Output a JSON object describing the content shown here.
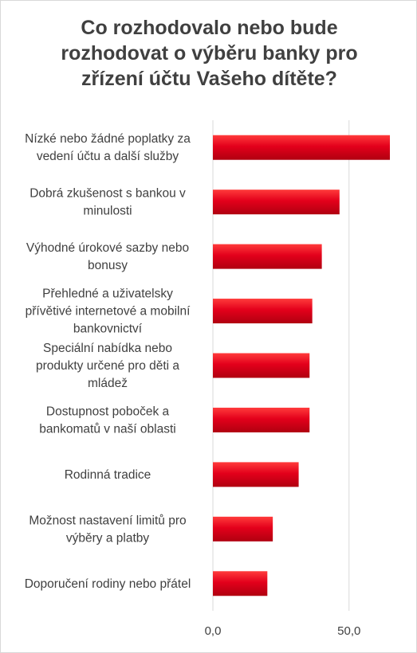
{
  "chart_data": {
    "type": "bar",
    "orientation": "horizontal",
    "title_lines": [
      "Co rozhodovalo nebo bude",
      "rozhodovat o výběru banky pro",
      "zřízení účtu Vašeho dítěte?"
    ],
    "categories": [
      [
        "Nízké nebo žádné poplatky za",
        "vedení účtu a další služby"
      ],
      [
        "Dobrá zkušenost s bankou v",
        "minulosti"
      ],
      [
        "Výhodné úrokové sazby nebo",
        "bonusy"
      ],
      [
        "Přehledné a uživatelsky",
        "přívětivé internetové a mobilní",
        "bankovnictví"
      ],
      [
        "Speciální nabídka nebo",
        "produkty určené pro děti a",
        "mládež"
      ],
      [
        "Dostupnost poboček a",
        "bankomatů v naší oblasti"
      ],
      [
        "Rodinná tradice"
      ],
      [
        "Možnost nastavení limitů pro",
        "výběry a platby"
      ],
      [
        "Doporučení rodiny nebo přátel"
      ]
    ],
    "values": [
      65.0,
      46.5,
      40.0,
      36.5,
      35.5,
      35.5,
      31.5,
      22.0,
      20.0
    ],
    "xlim": [
      0,
      65
    ],
    "xticks": [
      0,
      50
    ],
    "xtick_labels": [
      "0,0",
      "50,0"
    ],
    "grid": "vertical",
    "bar_color": "#e3001b",
    "bar_color_light": "#ff3b3b",
    "bar_color_dark": "#b00010"
  }
}
